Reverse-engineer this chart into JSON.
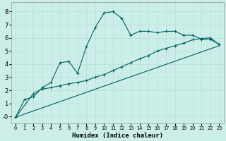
{
  "xlabel": "Humidex (Indice chaleur)",
  "background_color": "#cceee8",
  "line_color": "#006060",
  "grid_color": "#b8ddd8",
  "xlim": [
    -0.5,
    23.5
  ],
  "ylim": [
    -0.5,
    8.7
  ],
  "xticks": [
    0,
    1,
    2,
    3,
    4,
    5,
    6,
    7,
    8,
    9,
    10,
    11,
    12,
    13,
    14,
    15,
    16,
    17,
    18,
    19,
    20,
    21,
    22,
    23
  ],
  "yticks": [
    0,
    1,
    2,
    3,
    4,
    5,
    6,
    7,
    8
  ],
  "ytick_labels": [
    "-0",
    "1",
    "2",
    "3",
    "4",
    "5",
    "6",
    "7",
    "8"
  ],
  "line1_x": [
    0,
    1,
    2,
    3,
    4,
    5,
    6,
    7,
    8,
    9,
    10,
    11,
    12,
    13,
    14,
    15,
    16,
    17,
    18,
    19,
    20,
    21,
    22,
    23
  ],
  "line1_y": [
    -0.05,
    1.3,
    1.5,
    2.2,
    2.6,
    4.1,
    4.2,
    3.3,
    5.35,
    6.8,
    7.9,
    8.0,
    7.5,
    6.2,
    6.5,
    6.5,
    6.4,
    6.5,
    6.5,
    6.2,
    6.2,
    5.9,
    5.9,
    5.5
  ],
  "line2_x": [
    0,
    2,
    3,
    4,
    5,
    6,
    7,
    8,
    9,
    10,
    11,
    12,
    13,
    14,
    15,
    16,
    17,
    18,
    19,
    20,
    21,
    22,
    23
  ],
  "line2_y": [
    -0.05,
    1.75,
    2.1,
    2.2,
    2.35,
    2.5,
    2.6,
    2.75,
    3.0,
    3.2,
    3.5,
    3.8,
    4.1,
    4.4,
    4.65,
    5.0,
    5.2,
    5.4,
    5.6,
    5.85,
    5.95,
    6.0,
    5.5
  ],
  "line3_x": [
    0,
    23
  ],
  "line3_y": [
    -0.05,
    5.4
  ]
}
